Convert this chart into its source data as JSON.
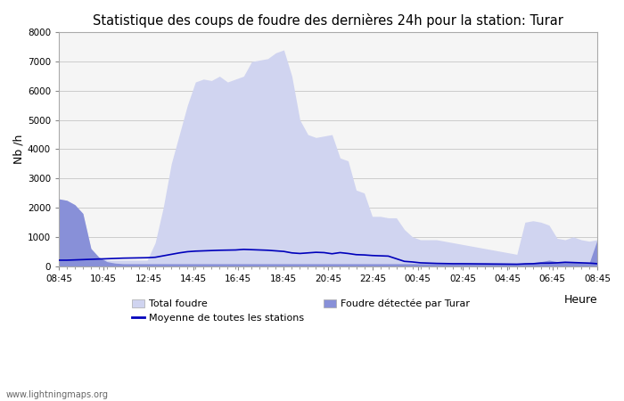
{
  "title": "Statistique des coups de foudre des dernières 24h pour la station: Turar",
  "xlabel": "Heure",
  "ylabel": "Nb /h",
  "ylim": [
    0,
    8000
  ],
  "yticks": [
    0,
    1000,
    2000,
    3000,
    4000,
    5000,
    6000,
    7000,
    8000
  ],
  "xtick_labels": [
    "08:45",
    "10:45",
    "12:45",
    "14:45",
    "16:45",
    "18:45",
    "20:45",
    "22:45",
    "00:45",
    "02:45",
    "04:45",
    "06:45",
    "08:45"
  ],
  "watermark": "www.lightningmaps.org",
  "bg_color": "#f5f5f5",
  "total_foudre_color": "#d0d4f0",
  "detected_color": "#8890d8",
  "mean_line_color": "#0000bb",
  "total_foudre": [
    2300,
    2250,
    2100,
    1800,
    600,
    300,
    200,
    200,
    200,
    200,
    200,
    200,
    800,
    2000,
    3500,
    4500,
    5500,
    6300,
    6400,
    6350,
    6500,
    6300,
    6400,
    6500,
    7000,
    7050,
    7100,
    7300,
    7400,
    6500,
    5000,
    4500,
    4400,
    4450,
    4500,
    3700,
    3600,
    2600,
    2500,
    1700,
    1700,
    1650,
    1650,
    1250,
    1000,
    900,
    900,
    900,
    850,
    800,
    750,
    700,
    650,
    600,
    550,
    500,
    450,
    400,
    1500,
    1550,
    1500,
    1400,
    950,
    900,
    1000,
    900,
    850,
    900
  ],
  "detected_turar": [
    2300,
    2250,
    2100,
    1800,
    600,
    300,
    150,
    100,
    80,
    80,
    80,
    80,
    80,
    80,
    80,
    80,
    80,
    80,
    80,
    80,
    80,
    80,
    80,
    80,
    80,
    80,
    80,
    80,
    80,
    80,
    80,
    80,
    80,
    80,
    80,
    80,
    80,
    80,
    80,
    80,
    80,
    80,
    80,
    80,
    80,
    80,
    80,
    80,
    80,
    80,
    80,
    80,
    80,
    80,
    80,
    80,
    80,
    80,
    100,
    120,
    150,
    200,
    150,
    150,
    150,
    120,
    100,
    900
  ],
  "mean_line": [
    200,
    200,
    210,
    220,
    230,
    240,
    250,
    260,
    270,
    275,
    280,
    285,
    300,
    350,
    400,
    450,
    490,
    510,
    520,
    530,
    540,
    545,
    550,
    570,
    560,
    550,
    540,
    520,
    500,
    450,
    430,
    450,
    470,
    460,
    420,
    460,
    430,
    390,
    380,
    360,
    350,
    340,
    250,
    160,
    140,
    110,
    100,
    90,
    85,
    80,
    80,
    78,
    75,
    73,
    70,
    68,
    65,
    62,
    75,
    80,
    100,
    100,
    110,
    130,
    120,
    110,
    100,
    80
  ]
}
